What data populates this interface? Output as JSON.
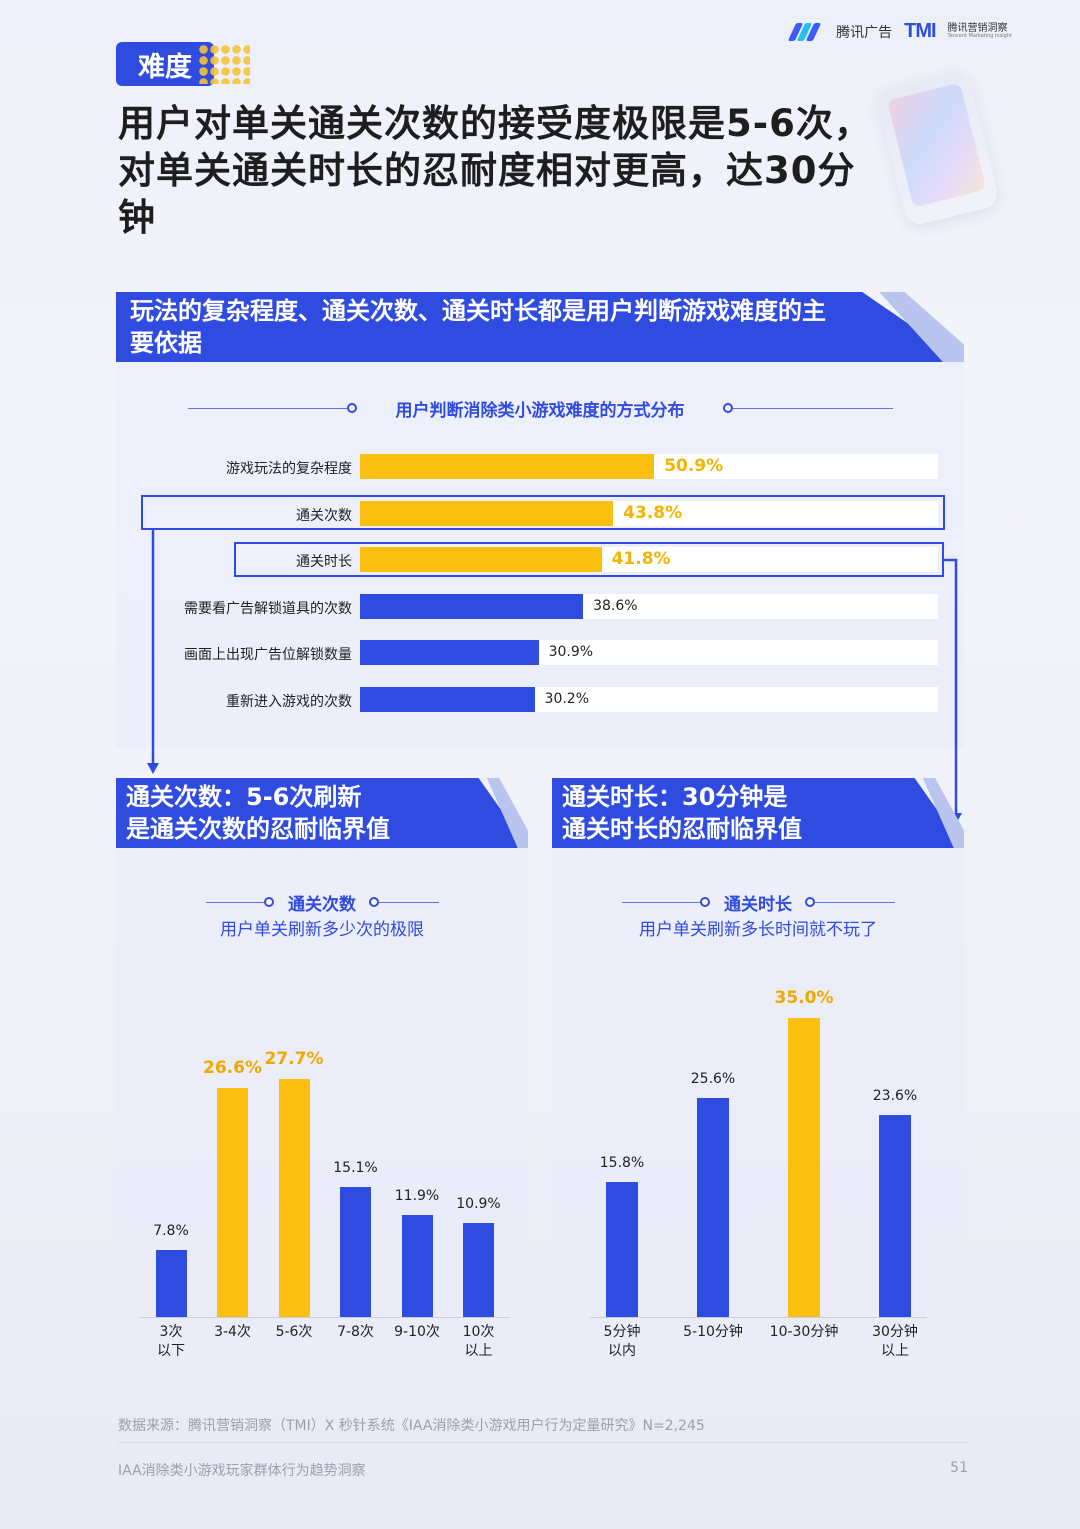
{
  "header": {
    "brand_tencent": "腾讯广告",
    "brand_tmi": "TMI",
    "brand_tmi_cn": "腾讯营销洞察",
    "brand_tmi_en": "Tencent Marketing Insight",
    "tag": "难度",
    "headline": "用户对单关通关次数的接受度极限是5-6次，对单关通关时长的忍耐度相对更高，达30分钟"
  },
  "section_main": {
    "banner": "玩法的复杂程度、通关次数、通关时长都是用户判断游戏难度的主要依据"
  },
  "section_left": {
    "banner_line1": "通关次数：5-6次刷新",
    "banner_line2": "是通关次数的忍耐临界值"
  },
  "section_right": {
    "banner_line1": "通关时长：30分钟是",
    "banner_line2": "通关时长的忍耐临界值"
  },
  "colors": {
    "primary": "#2f4be0",
    "highlight": "#fbbf0f"
  },
  "chart_data": [
    {
      "type": "bar",
      "orientation": "horizontal",
      "title": "用户判断消除类小游戏难度的方式分布",
      "categories": [
        "游戏玩法的复杂程度",
        "通关次数",
        "通关时长",
        "需要看广告解锁道具的次数",
        "画面上出现广告位解锁数量",
        "重新进入游戏的次数"
      ],
      "values": [
        50.9,
        43.8,
        41.8,
        38.6,
        30.9,
        30.2
      ],
      "labels": [
        "50.9%",
        "43.8%",
        "41.8%",
        "38.6%",
        "30.9%",
        "30.2%"
      ],
      "highlighted": [
        true,
        true,
        true,
        false,
        false,
        false
      ],
      "xlim": [
        0,
        100
      ]
    },
    {
      "type": "bar",
      "title": "通关次数",
      "subtitle": "用户单关刷新多少次的极限",
      "categories": [
        "3次\n以下",
        "3-4次",
        "5-6次",
        "7-8次",
        "9-10次",
        "10次\n以上"
      ],
      "values": [
        7.8,
        26.6,
        27.7,
        15.1,
        11.9,
        10.9
      ],
      "labels": [
        "7.8%",
        "26.6%",
        "27.7%",
        "15.1%",
        "11.9%",
        "10.9%"
      ],
      "highlighted": [
        false,
        true,
        true,
        false,
        false,
        false
      ],
      "ylim": [
        0,
        40
      ]
    },
    {
      "type": "bar",
      "title": "通关时长",
      "subtitle": "用户单关刷新多长时间就不玩了",
      "categories": [
        "5分钟\n以内",
        "5-10分钟",
        "10-30分钟",
        "30分钟\n以上"
      ],
      "values": [
        15.8,
        25.6,
        35.0,
        23.6
      ],
      "labels": [
        "15.8%",
        "25.6%",
        "35.0%",
        "23.6%"
      ],
      "highlighted": [
        false,
        false,
        true,
        false
      ],
      "ylim": [
        0,
        40
      ]
    }
  ],
  "footer": {
    "source": "数据来源：腾讯营销洞察（TMI）X 秒针系统《IAA消除类小游戏用户行为定量研究》N=2,245",
    "title": "IAA消除类小游戏玩家群体行为趋势洞察",
    "page": "51"
  }
}
